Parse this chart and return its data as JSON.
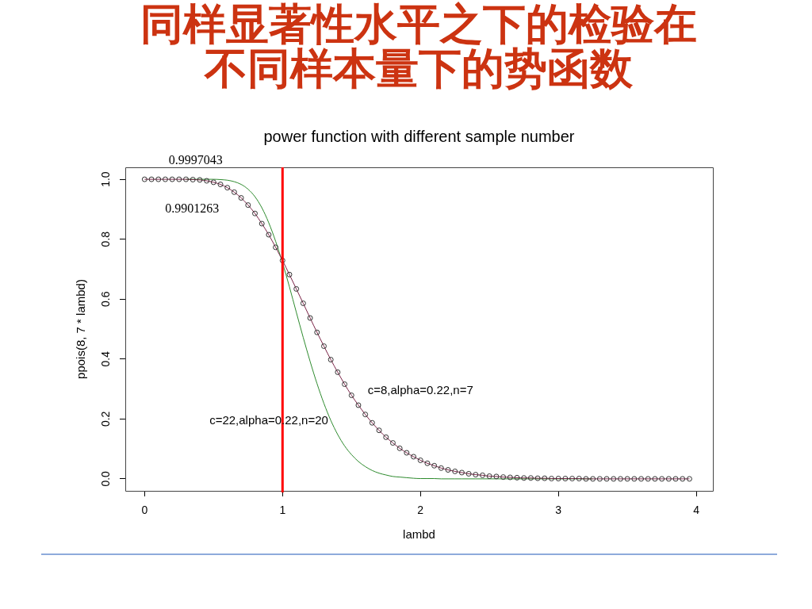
{
  "chart_data": {
    "type": "line",
    "title": "同样显著性水平之下的检验在不同样本量下的势函数",
    "subtitle": "power function with different sample number",
    "xlabel": "lambd",
    "ylabel": "ppois(8, 7 * lambd)",
    "x": [
      0,
      0.05,
      0.1,
      0.15,
      0.2,
      0.25,
      0.3,
      0.35,
      0.4,
      0.45,
      0.5,
      0.55,
      0.6,
      0.65,
      0.7,
      0.75,
      0.8,
      0.85,
      0.9,
      0.95,
      1,
      1.05,
      1.1,
      1.15,
      1.2,
      1.25,
      1.3,
      1.35,
      1.4,
      1.45,
      1.5,
      1.55,
      1.6,
      1.65,
      1.7,
      1.75,
      1.8,
      1.85,
      1.9,
      1.95,
      2,
      2.05,
      2.1,
      2.15,
      2.2,
      2.25,
      2.3,
      2.35,
      2.4,
      2.45,
      2.5,
      2.55,
      2.6,
      2.65,
      2.7,
      2.75,
      2.8,
      2.85,
      2.9,
      2.95,
      3,
      3.05,
      3.1,
      3.15,
      3.2,
      3.25,
      3.3,
      3.35,
      3.4,
      3.45,
      3.5,
      3.55,
      3.6,
      3.65,
      3.7,
      3.75,
      3.8,
      3.85,
      3.9,
      3.95
    ],
    "series": [
      {
        "color": "#2e8b2e",
        "values": [
          null,
          null,
          null,
          null,
          null,
          null,
          1,
          1,
          1,
          1,
          1,
          0.999,
          0.997,
          0.992,
          0.983,
          0.967,
          0.942,
          0.905,
          0.855,
          0.793,
          0.721,
          0.641,
          0.556,
          0.472,
          0.392,
          0.318,
          0.252,
          0.195,
          0.148,
          0.11,
          0.081,
          0.058,
          0.041,
          0.028,
          0.019,
          0.013,
          0.008,
          0.006,
          0.004,
          0.002,
          0.001,
          0.001,
          0.001,
          0,
          0,
          0,
          0,
          0,
          0,
          0,
          0,
          0,
          0,
          0,
          0,
          0,
          0,
          0,
          0,
          0,
          0,
          0,
          0,
          0,
          0,
          0,
          null,
          null,
          null,
          null,
          null,
          null,
          null,
          null,
          null,
          null,
          null,
          null,
          null,
          null
        ]
      },
      {
        "color": "#7b2347",
        "values": [
          1,
          1,
          1,
          1,
          1,
          1,
          1,
          0.999,
          0.998,
          0.995,
          0.99,
          0.983,
          0.972,
          0.957,
          0.938,
          0.914,
          0.886,
          0.852,
          0.815,
          0.773,
          0.729,
          0.682,
          0.634,
          0.586,
          0.537,
          0.489,
          0.443,
          0.398,
          0.356,
          0.316,
          0.279,
          0.246,
          0.215,
          0.187,
          0.162,
          0.139,
          0.12,
          0.102,
          0.087,
          0.074,
          0.062,
          0.052,
          0.044,
          0.036,
          0.03,
          0.025,
          0.021,
          0.017,
          0.014,
          0.012,
          0.009,
          0.008,
          0.006,
          0.005,
          0.004,
          0.003,
          0.003,
          0.002,
          0.002,
          0.001,
          0.001,
          0.001,
          0.001,
          0.001,
          0,
          0,
          0,
          0,
          0,
          0,
          0,
          0,
          0,
          0,
          0,
          0,
          0,
          0,
          0,
          0
        ]
      },
      {
        "type": "scatter",
        "color": "#333333",
        "marker": "circle",
        "values": [
          1,
          1,
          1,
          1,
          1,
          1,
          1,
          0.999,
          0.998,
          0.995,
          0.99,
          0.983,
          0.972,
          0.957,
          0.938,
          0.914,
          0.886,
          0.852,
          0.815,
          0.773,
          0.729,
          0.682,
          0.634,
          0.586,
          0.537,
          0.489,
          0.443,
          0.398,
          0.356,
          0.316,
          0.279,
          0.246,
          0.215,
          0.187,
          0.162,
          0.139,
          0.12,
          0.102,
          0.087,
          0.074,
          0.062,
          0.052,
          0.044,
          0.036,
          0.03,
          0.025,
          0.021,
          0.017,
          0.014,
          0.012,
          0.009,
          0.008,
          0.006,
          0.005,
          0.004,
          0.003,
          0.003,
          0.002,
          0.002,
          0.001,
          0.001,
          0.001,
          0.001,
          0.001,
          0,
          0,
          0,
          0,
          0,
          0,
          0,
          0,
          0,
          0,
          0,
          0,
          0,
          0,
          0,
          0
        ]
      }
    ],
    "xlim": [
      -0.14,
      4.12
    ],
    "ylim": [
      -0.04,
      1.04
    ],
    "xticks": [
      0,
      1,
      2,
      3,
      4
    ],
    "yticks": [
      {
        "value": 0,
        "label": "0.0"
      },
      0.2,
      0.4,
      0.6,
      0.8,
      {
        "value": 1,
        "label": "1.0"
      }
    ],
    "ref_lines": [
      {
        "axis": "x",
        "value": 1,
        "color": "#ff0000"
      }
    ],
    "annotations": [
      "0.9997043",
      "0.9901263",
      "c=8,alpha=0.22,n=7",
      "c=22,alpha=0.22,n=20"
    ]
  }
}
